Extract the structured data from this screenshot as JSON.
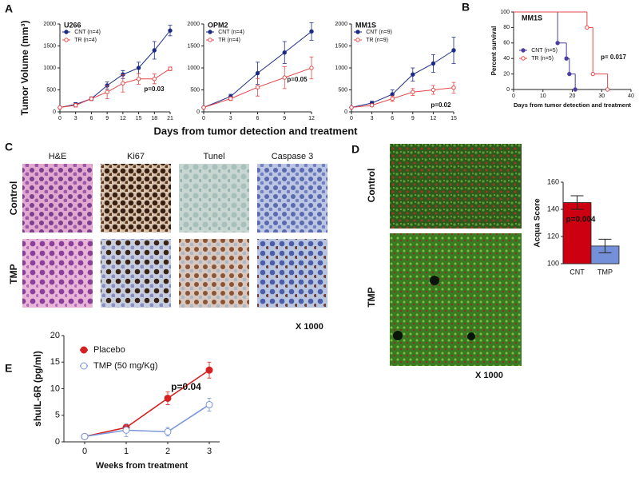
{
  "panels": {
    "labels": [
      "A",
      "B",
      "C",
      "D",
      "E"
    ]
  },
  "panel_a": {
    "ylabel": "Tumor Volume (mm³)",
    "xlabel": "Days from tumor detection and treatment"
  },
  "histology": {
    "columns": [
      "H&E",
      "Ki67",
      "Tunel",
      "Caspase 3"
    ],
    "rows": [
      "Control",
      "TMP"
    ],
    "magnification": "X 1000"
  },
  "immunofluorescence": {
    "rows": [
      "Control",
      "TMP"
    ],
    "magnification": "X 1000"
  },
  "chart_data": [
    {
      "type": "line",
      "title": "U266",
      "x": [
        0,
        3,
        6,
        9,
        12,
        15,
        18,
        21
      ],
      "xlim": [
        0,
        21
      ],
      "xticks": [
        0,
        3,
        6,
        9,
        12,
        15,
        18,
        21
      ],
      "ylim": [
        0,
        2000
      ],
      "yticks": [
        0,
        500,
        1000,
        1500,
        2000
      ],
      "legend": "upper left",
      "annotation": "p=0.03",
      "series": [
        {
          "name": "CNT (n=4)",
          "color": "#1c2a86",
          "filled": true,
          "values": [
            100,
            170,
            300,
            600,
            850,
            1000,
            1400,
            1850
          ],
          "errors": [
            20,
            40,
            40,
            80,
            90,
            130,
            200,
            120
          ]
        },
        {
          "name": "TR (n=4)",
          "color": "#e5474a",
          "filled": false,
          "values": [
            100,
            150,
            300,
            450,
            650,
            750,
            750,
            980
          ],
          "errors": [
            20,
            40,
            40,
            150,
            200,
            120,
            110,
            40
          ]
        }
      ]
    },
    {
      "type": "line",
      "title": "OPM2",
      "x": [
        0,
        3,
        6,
        9,
        12
      ],
      "xlim": [
        0,
        12
      ],
      "xticks": [
        0,
        3,
        6,
        9,
        12
      ],
      "ylim": [
        0,
        2000
      ],
      "yticks": [
        0,
        500,
        1000,
        1500,
        2000
      ],
      "legend": "upper left",
      "annotation": "p=0.05",
      "series": [
        {
          "name": "CNT (n=4)",
          "color": "#1c2a86",
          "filled": true,
          "values": [
            100,
            350,
            880,
            1350,
            1830
          ],
          "errors": [
            20,
            50,
            250,
            250,
            200
          ]
        },
        {
          "name": "TR (n=4)",
          "color": "#e5474a",
          "filled": false,
          "values": [
            100,
            300,
            560,
            780,
            1000
          ],
          "errors": [
            20,
            40,
            200,
            250,
            250
          ]
        }
      ]
    },
    {
      "type": "line",
      "title": "MM1S",
      "x": [
        0,
        3,
        6,
        9,
        12,
        15
      ],
      "xlim": [
        0,
        15
      ],
      "xticks": [
        0,
        3,
        6,
        9,
        12,
        15
      ],
      "ylim": [
        0,
        2000
      ],
      "yticks": [
        0,
        500,
        1000,
        1500,
        2000
      ],
      "legend": "upper left",
      "annotation": "p=0.02",
      "series": [
        {
          "name": "CNT (n=9)",
          "color": "#1c2a86",
          "filled": true,
          "values": [
            100,
            200,
            400,
            850,
            1100,
            1400
          ],
          "errors": [
            20,
            40,
            100,
            150,
            200,
            300
          ]
        },
        {
          "name": "TR (n=9)",
          "color": "#e5474a",
          "filled": false,
          "values": [
            100,
            150,
            300,
            450,
            500,
            550
          ],
          "errors": [
            20,
            30,
            60,
            80,
            100,
            120
          ]
        }
      ]
    },
    {
      "type": "line",
      "drawstyle": "steps",
      "title": "MM1S",
      "xlabel": "Days from tumor detection and treatment",
      "ylabel": "Percent survival",
      "xlim": [
        0,
        40
      ],
      "xticks": [
        0,
        10,
        20,
        30,
        40
      ],
      "ylim": [
        0,
        100
      ],
      "yticks": [
        0,
        20,
        40,
        60,
        80,
        100
      ],
      "legend": "center left",
      "annotation": "p= 0.017",
      "series": [
        {
          "name": "CNT (n=5)",
          "color": "#4a3fa0",
          "filled": true,
          "x": [
            0,
            15,
            18,
            19,
            21
          ],
          "values": [
            100,
            60,
            40,
            20,
            0
          ]
        },
        {
          "name": "TR (n=5)",
          "color": "#e5474a",
          "filled": false,
          "x": [
            0,
            25,
            27,
            32
          ],
          "values": [
            100,
            80,
            20,
            0
          ]
        }
      ]
    },
    {
      "type": "bar",
      "categories": [
        "CNT",
        "TMP"
      ],
      "values": [
        145,
        113
      ],
      "errors": [
        5,
        5
      ],
      "colors": [
        "#cc0010",
        "#7490d8"
      ],
      "ylim": [
        100,
        160
      ],
      "yticks": [
        100,
        120,
        140,
        160
      ],
      "ylabel": "Acqua Score",
      "annotation": "p=0.004"
    },
    {
      "type": "line",
      "x": [
        0,
        1,
        2,
        3
      ],
      "xlim": [
        -0.5,
        3.25
      ],
      "xticks": [
        0,
        1,
        2,
        3
      ],
      "ylim": [
        0,
        20
      ],
      "yticks": [
        0,
        5,
        10,
        15,
        20
      ],
      "xlabel": "Weeks from treatment",
      "ylabel": "shuIL-6R (pg/ml)",
      "legend": "upper left",
      "annotation": "p=0.04",
      "series": [
        {
          "name": "Placebo",
          "color": "#d42020",
          "filled": true,
          "values": [
            1,
            2.7,
            8.2,
            13.5
          ],
          "errors": [
            0.2,
            0.5,
            1.2,
            1.5
          ]
        },
        {
          "name": "TMP (50 mg/Kg)",
          "color": "#7b96d8",
          "filled": false,
          "values": [
            1,
            2.2,
            1.9,
            7
          ],
          "errors": [
            0.2,
            1.2,
            0.8,
            1.2
          ]
        }
      ]
    }
  ]
}
